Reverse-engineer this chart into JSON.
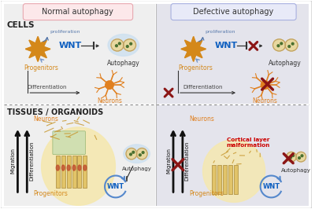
{
  "fig_w": 4.0,
  "fig_h": 2.66,
  "dpi": 100,
  "bg_outer": "#ffffff",
  "bg_topleft": "#efefef",
  "bg_topright": "#e4e4ec",
  "bg_botleft": "#efefef",
  "bg_botright": "#e4e4ec",
  "title_normal": "Normal autophagy",
  "title_defective": "Defective autophagy",
  "title_normal_bg": "#fce8ea",
  "title_normal_edge": "#e8a8b0",
  "title_defective_bg": "#e8eaf8",
  "title_defective_edge": "#a8b0e0",
  "label_cells": "CELLS",
  "label_tissues": "TISSUES / ORGANOIDS",
  "label_progenitors": "Progenitors",
  "label_neurons": "Neurons",
  "label_wnt": "WNT",
  "label_autophagy": "Autophagy",
  "label_differentiation": "Differentiation",
  "label_proliferation": "proliferation",
  "label_migration": "Migration",
  "label_cortical": "Cortical layer\nmalformation",
  "col_progenitor": "#d4881a",
  "col_neuron": "#e08020",
  "col_wnt": "#1060c0",
  "col_redx": "#8b1515",
  "col_arrow_dark": "#333333",
  "col_arrow_blue": "#6688bb",
  "col_prolife_blue": "#5577aa",
  "col_organoid_yellow": "#f5e8b0",
  "col_autophagy_bg": "#cce0f0",
  "col_autophagy_cell": "#e8d8a0",
  "col_autophagy_border": "#c0a060",
  "col_cortical_red": "#cc0000",
  "col_green_patch": "#c8ddb0",
  "col_column_cell": "#e0c060",
  "col_column_border": "#a08030",
  "col_wnt_circle": "#5588cc"
}
